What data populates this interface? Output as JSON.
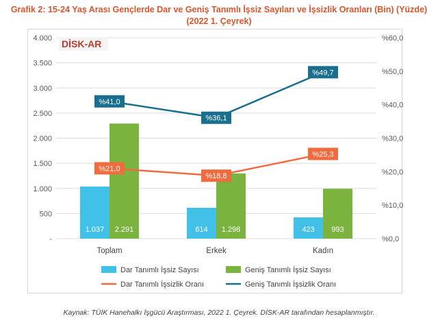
{
  "title": "Grafik 2: 15-24 Yaş Arası Gençlerde Dar ve Geniş Tanımlı İşsiz Sayıları ve İşsizlik Oranları (Bin) (Yüzde) (2022 1. Çeyrek)",
  "logo": {
    "text": "DİSK-AR",
    "color": "#c0392b"
  },
  "source": "Kaynak: TÜİK Hanehalkı İşgücü Araştırması, 2022 1. Çeyrek. DİSK-AR tarafından hesaplanmıştır.",
  "chart_data": {
    "type": "bar",
    "categories": [
      "Toplam",
      "Erkek",
      "Kadın"
    ],
    "left_axis": {
      "ylim": [
        0,
        4000
      ],
      "ticks": [
        "-",
        "500",
        "1.000",
        "1.500",
        "2.000",
        "2.500",
        "3.000",
        "3.500",
        "4.000"
      ]
    },
    "right_axis": {
      "ylim": [
        0,
        60
      ],
      "ticks": [
        "%0,0",
        "%10,0",
        "%20,0",
        "%30,0",
        "%40,0",
        "%50,0",
        "%60,0"
      ]
    },
    "bar_series": [
      {
        "name": "Dar Tanımlı İşsiz Sayısı",
        "color": "#41c0e8",
        "values": [
          1037,
          614,
          423
        ],
        "labels": [
          "1.037",
          "614",
          "423"
        ]
      },
      {
        "name": "Geniş Tanımlı İşsiz Sayısı",
        "color": "#7ab33e",
        "values": [
          2291,
          1298,
          993
        ],
        "labels": [
          "2.291",
          "1.298",
          "993"
        ]
      }
    ],
    "line_series": [
      {
        "name": "Dar Tanımlı İşsizlik Oranı",
        "color": "#f06b3f",
        "values": [
          21.0,
          18.8,
          25.3
        ],
        "labels": [
          "%21,0",
          "%18,8",
          "%25,3"
        ]
      },
      {
        "name": "Geniş Tanımlı İşsizlik Oranı",
        "color": "#1b6f8e",
        "values": [
          41.0,
          36.1,
          49.7
        ],
        "labels": [
          "%41,0",
          "%36,1",
          "%49,7"
        ]
      }
    ],
    "legend": [
      "Dar Tanımlı İşsiz Sayısı",
      "Geniş Tanımlı İşsiz Sayısı",
      "Dar Tanımlı İşsizlik Oranı",
      "Geniş Tanımlı İşsizlik Oranı"
    ]
  }
}
